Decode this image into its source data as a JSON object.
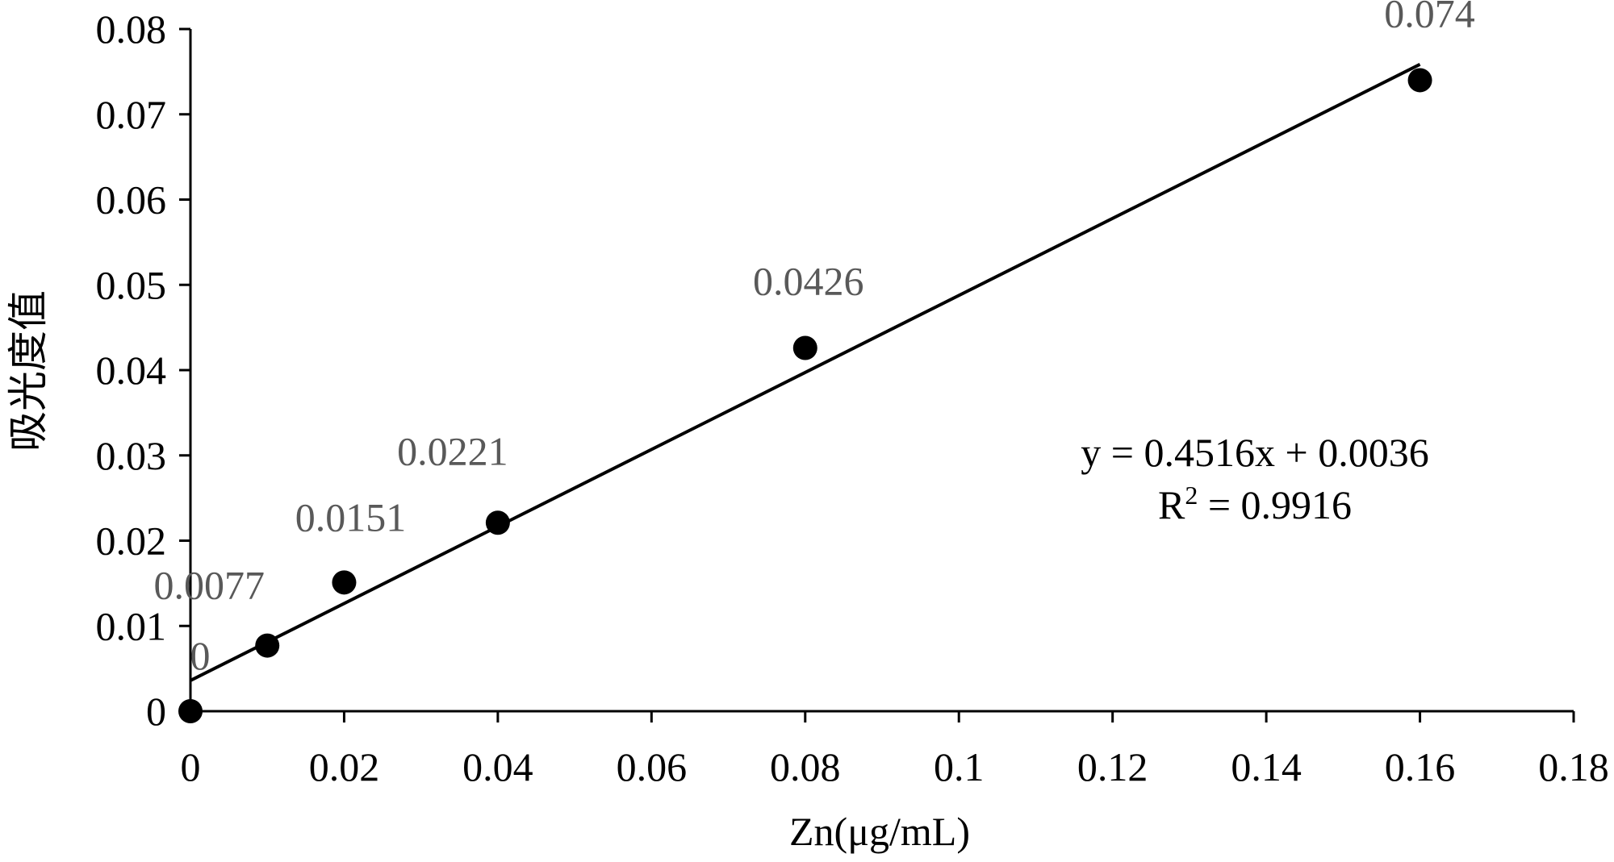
{
  "chart_data": {
    "type": "scatter",
    "xlabel": "Zn(μg/mL)",
    "ylabel": "吸光度值",
    "xlim": [
      0,
      0.18
    ],
    "ylim": [
      0,
      0.08
    ],
    "x_ticks": [
      "0",
      "0.02",
      "0.04",
      "0.06",
      "0.08",
      "0.1",
      "0.12",
      "0.14",
      "0.16",
      "0.18"
    ],
    "y_ticks": [
      "0",
      "0.01",
      "0.02",
      "0.03",
      "0.04",
      "0.05",
      "0.06",
      "0.07",
      "0.08"
    ],
    "series": [
      {
        "points": [
          {
            "x": 0,
            "y": 0,
            "label": "0"
          },
          {
            "x": 0.01,
            "y": 0.0077,
            "label": "0.0077"
          },
          {
            "x": 0.02,
            "y": 0.0151,
            "label": "0.0151"
          },
          {
            "x": 0.04,
            "y": 0.0221,
            "label": "0.0221"
          },
          {
            "x": 0.08,
            "y": 0.0426,
            "label": "0.0426"
          },
          {
            "x": 0.16,
            "y": 0.074,
            "label": "0.074"
          }
        ],
        "marker_color": "#000000",
        "label_color": "#595959"
      }
    ],
    "trendline": {
      "type": "linear",
      "slope": 0.4516,
      "intercept": 0.0036,
      "x_range": [
        0,
        0.16
      ],
      "equation": "y = 0.4516x + 0.0036",
      "r2_prefix": "R",
      "r2_sup": "2",
      "r2_value": " = 0.9916"
    },
    "grid": false,
    "legend": "none"
  }
}
